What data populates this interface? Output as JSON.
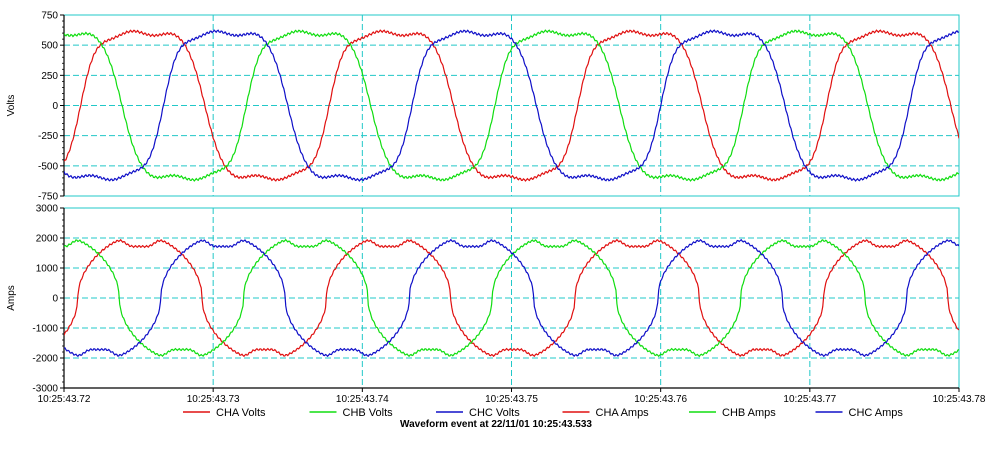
{
  "caption": "Waveform event at 22/11/01 10:25:43.533",
  "colors": {
    "grid": "#22c8c8",
    "cha": "#e01010",
    "chb": "#10dd10",
    "chc": "#1010c8",
    "axis": "#000000"
  },
  "chart_data": [
    {
      "type": "line",
      "title": "",
      "ylabel": "Volts",
      "xlabel": "",
      "ylim": [
        -750,
        750
      ],
      "yticks": [
        "750",
        "500",
        "250",
        "0",
        "-250",
        "-500",
        "-750"
      ],
      "grid": true,
      "x_range_s": [
        43.72,
        43.78
      ],
      "period_s": 0.016667,
      "series": [
        {
          "name": "CHA Volts",
          "color": "#e01010",
          "phase_deg": -24,
          "amplitude": 600,
          "shape": "voltage"
        },
        {
          "name": "CHB Volts",
          "color": "#10dd10",
          "phase_deg": 96,
          "amplitude": 600,
          "shape": "voltage"
        },
        {
          "name": "CHC Volts",
          "color": "#1010c8",
          "phase_deg": 216,
          "amplitude": 600,
          "shape": "voltage"
        }
      ]
    },
    {
      "type": "line",
      "title": "",
      "ylabel": "Amps",
      "xlabel": "",
      "ylim": [
        -3000,
        3000
      ],
      "yticks": [
        "3000",
        "2000",
        "1000",
        "0",
        "-1000",
        "-2000",
        "-3000"
      ],
      "grid": true,
      "x_range_s": [
        43.72,
        43.78
      ],
      "period_s": 0.016667,
      "series": [
        {
          "name": "CHA Amps",
          "color": "#e01010",
          "phase_deg": -20,
          "amplitude": 2000,
          "shape": "current"
        },
        {
          "name": "CHB Amps",
          "color": "#10dd10",
          "phase_deg": 100,
          "amplitude": 2000,
          "shape": "current"
        },
        {
          "name": "CHC Amps",
          "color": "#1010c8",
          "phase_deg": 220,
          "amplitude": 2000,
          "shape": "current"
        }
      ]
    }
  ],
  "x_ticks": [
    "10:25:43.72",
    "10:25:43.73",
    "10:25:43.74",
    "10:25:43.75",
    "10:25:43.76",
    "10:25:43.77",
    "10:25:43.78"
  ],
  "legend": [
    {
      "label": "CHA Volts",
      "color": "#e01010"
    },
    {
      "label": "CHB Volts",
      "color": "#10dd10"
    },
    {
      "label": "CHC Volts",
      "color": "#1010c8"
    },
    {
      "label": "CHA Amps",
      "color": "#e01010"
    },
    {
      "label": "CHB Amps",
      "color": "#10dd10"
    },
    {
      "label": "CHC Amps",
      "color": "#1010c8"
    }
  ]
}
